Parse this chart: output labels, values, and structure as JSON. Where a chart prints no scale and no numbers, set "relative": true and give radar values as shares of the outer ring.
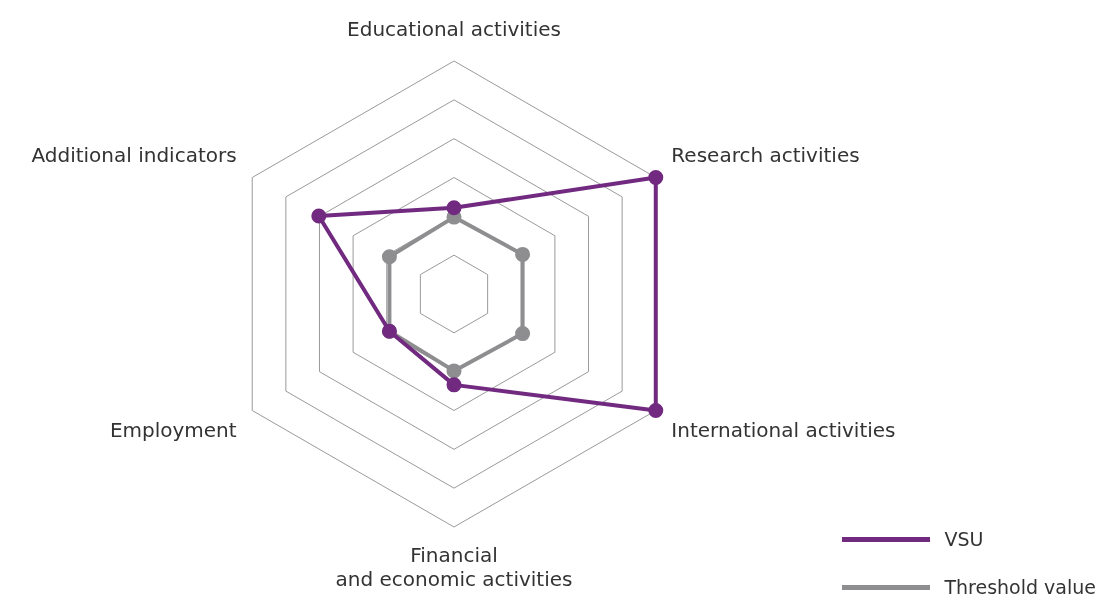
{
  "chart_data": {
    "type": "radar",
    "relative": true,
    "categories": [
      "Educational activities",
      "Research activities",
      "International activities",
      "Financial\nand economic activities",
      "Employment",
      "Additional indicators"
    ],
    "series": [
      {
        "name": "VSU",
        "color": "#712a80",
        "values": [
          0.37,
          1.0,
          1.0,
          0.39,
          0.32,
          0.67
        ]
      },
      {
        "name": "Threshold value",
        "color": "#8e8e90",
        "values": [
          0.33,
          0.34,
          0.34,
          0.33,
          0.32,
          0.32
        ]
      }
    ],
    "marker": "circle",
    "grid": true,
    "legend": "bottom right"
  }
}
